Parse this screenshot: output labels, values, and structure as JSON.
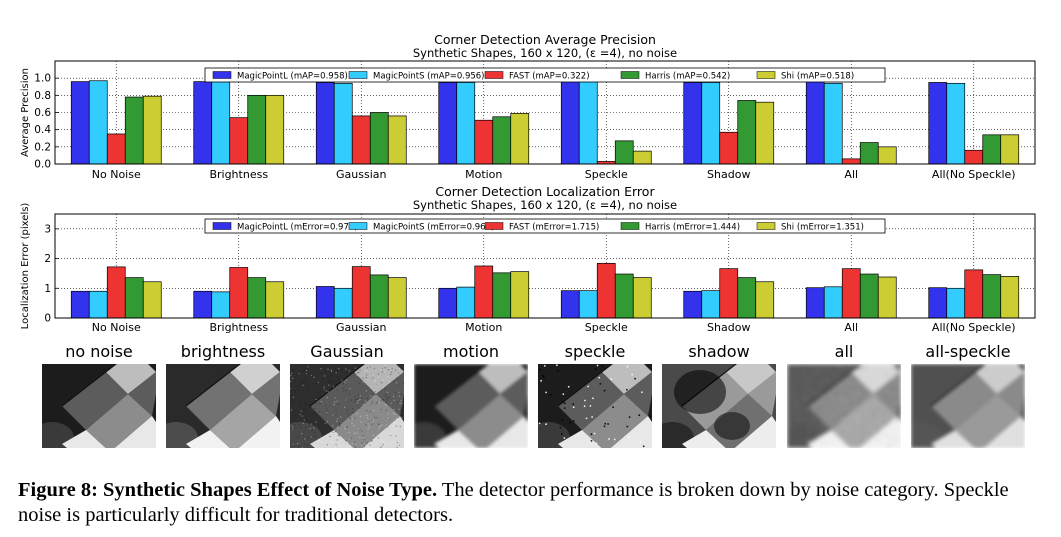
{
  "chart_data": [
    {
      "type": "bar",
      "title": "Corner Detection Average Precision",
      "subtitle": "Synthetic Shapes, 160 x 120, (ε =4), no noise",
      "ylabel": "Average Precision",
      "xlabel": "",
      "ylim": [
        0,
        1.2
      ],
      "yticks": [
        "0.0",
        "0.2",
        "0.4",
        "0.6",
        "0.8",
        "1.0"
      ],
      "grid": true,
      "legend_position": "top",
      "categories": [
        "No Noise",
        "Brightness",
        "Gaussian",
        "Motion",
        "Speckle",
        "Shadow",
        "All",
        "All(No Speckle)"
      ],
      "series": [
        {
          "name": "MagicPointL (mAP=0.958)",
          "color": "#3333ee",
          "values": [
            0.96,
            0.96,
            0.95,
            0.95,
            0.96,
            0.95,
            0.96,
            0.95
          ]
        },
        {
          "name": "MagicPointS (mAP=0.956)",
          "color": "#33ccff",
          "values": [
            0.97,
            0.97,
            0.94,
            0.95,
            0.97,
            0.95,
            0.94,
            0.94
          ]
        },
        {
          "name": "FAST (mAP=0.322)",
          "color": "#ee3333",
          "values": [
            0.35,
            0.54,
            0.56,
            0.51,
            0.03,
            0.37,
            0.06,
            0.16
          ]
        },
        {
          "name": "Harris (mAP=0.542)",
          "color": "#339933",
          "values": [
            0.78,
            0.8,
            0.6,
            0.55,
            0.27,
            0.74,
            0.25,
            0.34
          ]
        },
        {
          "name": "Shi (mAP=0.518)",
          "color": "#cccc33",
          "values": [
            0.79,
            0.8,
            0.56,
            0.59,
            0.15,
            0.72,
            0.2,
            0.34
          ]
        }
      ]
    },
    {
      "type": "bar",
      "title": "Corner Detection Localization Error",
      "subtitle": "Synthetic Shapes, 160 x 120, (ε =4), no noise",
      "ylabel": "Localization Error (pixels)",
      "xlabel": "",
      "ylim": [
        0,
        3.5
      ],
      "yticks": [
        "0",
        "1",
        "2",
        "3"
      ],
      "grid": true,
      "legend_position": "top",
      "categories": [
        "No Noise",
        "Brightness",
        "Gaussian",
        "Motion",
        "Speckle",
        "Shadow",
        "All",
        "All(No Speckle)"
      ],
      "series": [
        {
          "name": "MagicPointL (mError=0.978)",
          "color": "#3333ee",
          "values": [
            0.9,
            0.9,
            1.06,
            1.0,
            0.92,
            0.9,
            1.02,
            1.02
          ]
        },
        {
          "name": "MagicPointS (mError=0.968)",
          "color": "#33ccff",
          "values": [
            0.9,
            0.88,
            1.0,
            1.04,
            0.92,
            0.92,
            1.05,
            1.0
          ]
        },
        {
          "name": "FAST (mError=1.715)",
          "color": "#ee3333",
          "values": [
            1.72,
            1.7,
            1.73,
            1.75,
            1.84,
            1.66,
            1.66,
            1.62
          ]
        },
        {
          "name": "Harris (mError=1.444)",
          "color": "#339933",
          "values": [
            1.36,
            1.36,
            1.45,
            1.52,
            1.48,
            1.36,
            1.48,
            1.46
          ]
        },
        {
          "name": "Shi (mError=1.351)",
          "color": "#cccc33",
          "values": [
            1.22,
            1.22,
            1.36,
            1.56,
            1.36,
            1.22,
            1.38,
            1.4
          ]
        }
      ]
    }
  ],
  "thumbnails": [
    {
      "label": "no noise",
      "style": "clean"
    },
    {
      "label": "brightness",
      "style": "bright"
    },
    {
      "label": "Gaussian",
      "style": "gaussian"
    },
    {
      "label": "motion",
      "style": "motion"
    },
    {
      "label": "speckle",
      "style": "speckle"
    },
    {
      "label": "shadow",
      "style": "shadow"
    },
    {
      "label": "all",
      "style": "all"
    },
    {
      "label": "all-speckle",
      "style": "allnospeckle"
    }
  ],
  "caption": {
    "bold": "Figure 8: Synthetic Shapes Effect of Noise Type.",
    "text": " The detector performance is broken down by noise category. Speckle noise is particularly difficult for traditional detectors."
  }
}
